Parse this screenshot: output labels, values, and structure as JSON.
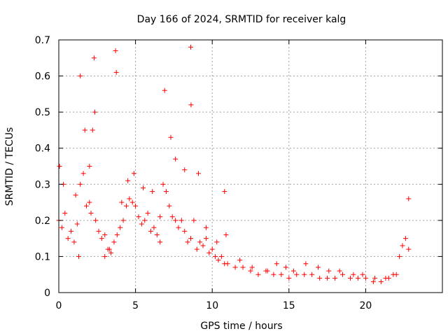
{
  "chart_data": {
    "type": "scatter",
    "title": "Day 166 of 2024, SRMTID for receiver kalg",
    "xlabel": "GPS time / hours",
    "ylabel": "SRMTID / TECUs",
    "xlim": [
      0,
      25
    ],
    "ylim": [
      0,
      0.7
    ],
    "x_ticks": [
      0,
      5,
      10,
      15,
      20
    ],
    "x_tick_labels": [
      "0",
      "5",
      "10",
      "15",
      "20"
    ],
    "y_ticks": [
      0,
      0.1,
      0.2,
      0.3,
      0.4,
      0.5,
      0.6,
      0.7
    ],
    "y_tick_labels": [
      "0",
      "0.1",
      "0.2",
      "0.3",
      "0.4",
      "0.5",
      "0.6",
      "0.7"
    ],
    "grid": true,
    "marker": "plus",
    "marker_color": "#ff0000",
    "series": [
      {
        "name": "SRMTID",
        "x": [
          0.0,
          0.2,
          0.4,
          0.6,
          0.8,
          1.0,
          1.2,
          1.4,
          1.6,
          1.8,
          2.0,
          2.2,
          2.4,
          2.6,
          2.8,
          3.0,
          3.2,
          3.4,
          3.6,
          3.8,
          4.0,
          4.2,
          4.4,
          4.6,
          4.8,
          5.0,
          5.2,
          5.4,
          5.6,
          5.8,
          6.0,
          6.2,
          6.4,
          6.6,
          6.8,
          7.0,
          7.2,
          7.4,
          7.6,
          7.8,
          8.0,
          8.2,
          8.4,
          8.6,
          8.8,
          9.0,
          9.2,
          9.4,
          9.6,
          9.8,
          10.0,
          10.2,
          10.4,
          10.6,
          10.8,
          11.0,
          11.5,
          12.0,
          12.5,
          13.0,
          13.5,
          14.0,
          14.5,
          15.0,
          15.5,
          16.0,
          16.5,
          17.0,
          17.5,
          18.0,
          18.5,
          19.0,
          19.5,
          20.0,
          20.5,
          21.0,
          21.5,
          22.0,
          22.2,
          22.4,
          22.6,
          22.8,
          0.05,
          0.3,
          1.4,
          1.7,
          2.3,
          2.35,
          3.7,
          3.75,
          6.9,
          7.3,
          8.6,
          8.62,
          10.8,
          22.8,
          1.1,
          1.3,
          2.0,
          2.1,
          3.0,
          3.3,
          4.1,
          4.5,
          4.9,
          5.5,
          6.1,
          6.6,
          7.6,
          8.2,
          9.1,
          9.6,
          10.3,
          10.9,
          11.8,
          12.6,
          13.6,
          14.2,
          14.8,
          15.3,
          16.1,
          16.9,
          17.6,
          18.3,
          19.2,
          19.8,
          20.6,
          21.3,
          21.8
        ],
        "y": [
          0.2,
          0.18,
          0.22,
          0.15,
          0.17,
          0.14,
          0.19,
          0.3,
          0.33,
          0.24,
          0.35,
          0.45,
          0.2,
          0.17,
          0.15,
          0.16,
          0.12,
          0.11,
          0.14,
          0.16,
          0.18,
          0.2,
          0.24,
          0.26,
          0.25,
          0.24,
          0.21,
          0.19,
          0.2,
          0.22,
          0.17,
          0.18,
          0.16,
          0.14,
          0.3,
          0.28,
          0.24,
          0.21,
          0.2,
          0.18,
          0.2,
          0.17,
          0.14,
          0.15,
          0.2,
          0.12,
          0.14,
          0.13,
          0.15,
          0.11,
          0.12,
          0.1,
          0.09,
          0.1,
          0.08,
          0.08,
          0.07,
          0.07,
          0.06,
          0.05,
          0.06,
          0.05,
          0.05,
          0.04,
          0.05,
          0.05,
          0.05,
          0.04,
          0.04,
          0.04,
          0.05,
          0.04,
          0.04,
          0.04,
          0.03,
          0.03,
          0.04,
          0.05,
          0.1,
          0.13,
          0.15,
          0.12,
          0.35,
          0.3,
          0.6,
          0.45,
          0.65,
          0.5,
          0.67,
          0.61,
          0.56,
          0.43,
          0.68,
          0.52,
          0.28,
          0.26,
          0.27,
          0.1,
          0.25,
          0.22,
          0.1,
          0.12,
          0.25,
          0.31,
          0.33,
          0.29,
          0.28,
          0.21,
          0.37,
          0.34,
          0.33,
          0.18,
          0.14,
          0.16,
          0.09,
          0.07,
          0.06,
          0.08,
          0.07,
          0.06,
          0.08,
          0.07,
          0.06,
          0.06,
          0.05,
          0.05,
          0.04,
          0.04,
          0.05
        ]
      }
    ]
  }
}
